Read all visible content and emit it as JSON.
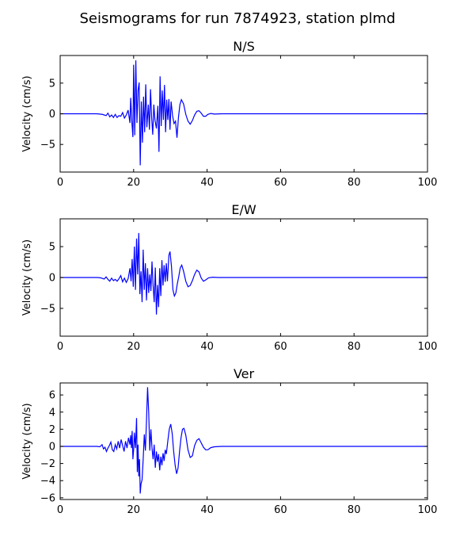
{
  "figure_title": "Seismograms for run 7874923, station plmd",
  "chart_data": [
    {
      "type": "line",
      "title": "N/S",
      "xlabel": "",
      "ylabel": "Velocity (cm/s)",
      "xlim": [
        0,
        100
      ],
      "ylim": [
        -9.5,
        9.5
      ],
      "xticks": [
        0,
        20,
        40,
        60,
        80,
        100
      ],
      "yticks": [
        -5,
        0,
        5
      ],
      "line_color": "#0000ff",
      "grid": false,
      "series": [
        {
          "values": [
            [
              0,
              0
            ],
            [
              10,
              0
            ],
            [
              11.5,
              -0.1
            ],
            [
              12.5,
              -0.3
            ],
            [
              13,
              0.1
            ],
            [
              13.5,
              -0.5
            ],
            [
              14,
              -0.2
            ],
            [
              14.5,
              -0.6
            ],
            [
              15,
              -0.1
            ],
            [
              15.5,
              -0.6
            ],
            [
              16,
              -0.3
            ],
            [
              16.5,
              -0.4
            ],
            [
              17,
              0.2
            ],
            [
              17.5,
              -0.7
            ],
            [
              18,
              -0.2
            ],
            [
              18.5,
              0.6
            ],
            [
              19,
              -1.5
            ],
            [
              19.2,
              2.6
            ],
            [
              19.5,
              -1.2
            ],
            [
              19.8,
              -3.8
            ],
            [
              20,
              8.0
            ],
            [
              20.3,
              -3.5
            ],
            [
              20.6,
              8.7
            ],
            [
              20.9,
              -1.5
            ],
            [
              21.2,
              3.8
            ],
            [
              21.5,
              5.1
            ],
            [
              21.8,
              -8.4
            ],
            [
              22.1,
              2.0
            ],
            [
              22.4,
              -4.7
            ],
            [
              22.7,
              2.8
            ],
            [
              23,
              -3.0
            ],
            [
              23.3,
              4.8
            ],
            [
              23.6,
              -2.2
            ],
            [
              24,
              1.5
            ],
            [
              24.3,
              -2.6
            ],
            [
              24.6,
              4.0
            ],
            [
              24.9,
              -0.6
            ],
            [
              25.2,
              -3.4
            ],
            [
              25.5,
              1.5
            ],
            [
              25.8,
              -1.0
            ],
            [
              26.2,
              -2.4
            ],
            [
              26.6,
              1.3
            ],
            [
              26.9,
              -6.2
            ],
            [
              27.2,
              6.1
            ],
            [
              27.5,
              -2.0
            ],
            [
              27.8,
              3.8
            ],
            [
              28.1,
              -1.0
            ],
            [
              28.4,
              4.7
            ],
            [
              28.7,
              -3.0
            ],
            [
              29,
              2.3
            ],
            [
              29.3,
              -1.0
            ],
            [
              29.6,
              2.4
            ],
            [
              29.9,
              -2.6
            ],
            [
              30.2,
              2.0
            ],
            [
              30.6,
              -0.3
            ],
            [
              31,
              -1.6
            ],
            [
              31.4,
              -1.2
            ],
            [
              31.8,
              -3.9
            ],
            [
              32.2,
              -0.6
            ],
            [
              32.6,
              1.5
            ],
            [
              33,
              2.3
            ],
            [
              33.6,
              1.6
            ],
            [
              34.2,
              -0.1
            ],
            [
              34.8,
              -1.2
            ],
            [
              35.4,
              -1.7
            ],
            [
              36,
              -1.1
            ],
            [
              36.6,
              -0.2
            ],
            [
              37.2,
              0.4
            ],
            [
              37.8,
              0.5
            ],
            [
              38.4,
              0.1
            ],
            [
              39,
              -0.4
            ],
            [
              39.6,
              -0.4
            ],
            [
              40.2,
              -0.1
            ],
            [
              41,
              0.05
            ],
            [
              42,
              -0.05
            ],
            [
              44,
              0
            ],
            [
              100,
              0
            ]
          ]
        }
      ]
    },
    {
      "type": "line",
      "title": "E/W",
      "xlabel": "",
      "ylabel": "Velocity (cm/s)",
      "xlim": [
        0,
        100
      ],
      "ylim": [
        -9.5,
        9.5
      ],
      "xticks": [
        0,
        20,
        40,
        60,
        80,
        100
      ],
      "yticks": [
        -5,
        0,
        5
      ],
      "line_color": "#0000ff",
      "grid": false,
      "series": [
        {
          "values": [
            [
              0,
              0
            ],
            [
              10,
              0
            ],
            [
              11,
              -0.05
            ],
            [
              12,
              -0.25
            ],
            [
              12.5,
              0.1
            ],
            [
              13,
              -0.3
            ],
            [
              13.5,
              -0.6
            ],
            [
              14,
              -0.1
            ],
            [
              14.5,
              -0.5
            ],
            [
              15,
              -0.3
            ],
            [
              15.5,
              -0.6
            ],
            [
              16,
              -0.2
            ],
            [
              16.5,
              0.3
            ],
            [
              17,
              -0.7
            ],
            [
              17.5,
              -0.1
            ],
            [
              18,
              -0.8
            ],
            [
              18.5,
              -0.2
            ],
            [
              19,
              1.5
            ],
            [
              19.3,
              -0.6
            ],
            [
              19.6,
              3.0
            ],
            [
              19.9,
              -1.5
            ],
            [
              20.2,
              5.0
            ],
            [
              20.5,
              -2.0
            ],
            [
              20.8,
              6.3
            ],
            [
              21.1,
              0.5
            ],
            [
              21.4,
              7.2
            ],
            [
              21.7,
              -2.7
            ],
            [
              22,
              1.0
            ],
            [
              22.3,
              -4.0
            ],
            [
              22.6,
              4.5
            ],
            [
              22.9,
              -2.0
            ],
            [
              23.2,
              2.3
            ],
            [
              23.5,
              -3.7
            ],
            [
              23.8,
              1.5
            ],
            [
              24.1,
              -2.5
            ],
            [
              24.4,
              0.5
            ],
            [
              24.7,
              -2.2
            ],
            [
              25,
              2.6
            ],
            [
              25.3,
              -1.3
            ],
            [
              25.6,
              -4.0
            ],
            [
              25.9,
              1.6
            ],
            [
              26.2,
              -6.0
            ],
            [
              26.5,
              -1.2
            ],
            [
              26.8,
              -4.8
            ],
            [
              27.1,
              1.5
            ],
            [
              27.4,
              -3.0
            ],
            [
              27.7,
              2.8
            ],
            [
              28,
              -1.3
            ],
            [
              28.3,
              2.0
            ],
            [
              28.6,
              -0.7
            ],
            [
              28.9,
              2.3
            ],
            [
              29.2,
              -0.6
            ],
            [
              29.6,
              3.6
            ],
            [
              29.9,
              4.2
            ],
            [
              30.3,
              1.8
            ],
            [
              30.7,
              -2.0
            ],
            [
              31.1,
              -3.0
            ],
            [
              31.5,
              -2.5
            ],
            [
              31.9,
              -1.0
            ],
            [
              32.3,
              0.2
            ],
            [
              32.7,
              1.6
            ],
            [
              33.1,
              2.0
            ],
            [
              33.6,
              1.0
            ],
            [
              34.2,
              -0.6
            ],
            [
              34.8,
              -1.5
            ],
            [
              35.4,
              -1.3
            ],
            [
              36,
              -0.5
            ],
            [
              36.6,
              0.5
            ],
            [
              37.2,
              1.2
            ],
            [
              37.8,
              0.9
            ],
            [
              38.4,
              -0.1
            ],
            [
              39,
              -0.6
            ],
            [
              39.6,
              -0.4
            ],
            [
              40.4,
              -0.05
            ],
            [
              41.5,
              0.05
            ],
            [
              43,
              0
            ],
            [
              100,
              0
            ]
          ]
        }
      ]
    },
    {
      "type": "line",
      "title": "Ver",
      "xlabel": "",
      "ylabel": "Velocity (cm/s)",
      "xlim": [
        0,
        100
      ],
      "ylim": [
        -6.2,
        7.4
      ],
      "xticks": [
        0,
        20,
        40,
        60,
        80,
        100
      ],
      "yticks": [
        -6,
        -4,
        -2,
        0,
        2,
        4,
        6
      ],
      "line_color": "#0000ff",
      "grid": false,
      "series": [
        {
          "values": [
            [
              0,
              0
            ],
            [
              10,
              0
            ],
            [
              10.8,
              -0.05
            ],
            [
              11.4,
              0.2
            ],
            [
              11.8,
              -0.3
            ],
            [
              12.2,
              -0.1
            ],
            [
              12.6,
              -0.6
            ],
            [
              13,
              -0.2
            ],
            [
              13.4,
              0.1
            ],
            [
              13.8,
              0.5
            ],
            [
              14.2,
              -0.4
            ],
            [
              14.6,
              -0.6
            ],
            [
              15,
              0.2
            ],
            [
              15.4,
              -0.3
            ],
            [
              15.8,
              0.6
            ],
            [
              16.2,
              -0.2
            ],
            [
              16.6,
              0.8
            ],
            [
              17,
              0.1
            ],
            [
              17.4,
              -0.6
            ],
            [
              17.8,
              0.6
            ],
            [
              18.2,
              -0.2
            ],
            [
              18.6,
              1.0
            ],
            [
              19,
              0.2
            ],
            [
              19.2,
              1.3
            ],
            [
              19.4,
              -0.2
            ],
            [
              19.6,
              1.8
            ],
            [
              19.8,
              -1.5
            ],
            [
              20,
              -0.4
            ],
            [
              20.2,
              1.6
            ],
            [
              20.5,
              -0.2
            ],
            [
              20.8,
              3.3
            ],
            [
              21,
              -3.0
            ],
            [
              21.2,
              0.2
            ],
            [
              21.4,
              -3.5
            ],
            [
              21.6,
              -1.5
            ],
            [
              21.8,
              -5.5
            ],
            [
              22,
              -4.4
            ],
            [
              22.3,
              -3.9
            ],
            [
              22.6,
              -1.5
            ],
            [
              22.9,
              1.4
            ],
            [
              23.2,
              -0.5
            ],
            [
              23.5,
              3.0
            ],
            [
              23.8,
              6.9
            ],
            [
              24.1,
              4.0
            ],
            [
              24.4,
              -0.5
            ],
            [
              24.7,
              2.0
            ],
            [
              25,
              -0.2
            ],
            [
              25.3,
              -1.5
            ],
            [
              25.6,
              0.2
            ],
            [
              25.9,
              -2.5
            ],
            [
              26.2,
              -0.6
            ],
            [
              26.5,
              -1.8
            ],
            [
              26.8,
              -0.9
            ],
            [
              27.1,
              -2.8
            ],
            [
              27.4,
              -1.2
            ],
            [
              27.7,
              -2.2
            ],
            [
              28,
              -0.8
            ],
            [
              28.3,
              -1.7
            ],
            [
              28.6,
              -0.4
            ],
            [
              28.9,
              -0.9
            ],
            [
              29.3,
              0.6
            ],
            [
              29.7,
              2.0
            ],
            [
              30.1,
              2.6
            ],
            [
              30.5,
              1.5
            ],
            [
              30.9,
              -0.6
            ],
            [
              31.3,
              -2.2
            ],
            [
              31.7,
              -3.2
            ],
            [
              32.1,
              -2.5
            ],
            [
              32.5,
              -0.6
            ],
            [
              32.9,
              1.0
            ],
            [
              33.3,
              2.0
            ],
            [
              33.7,
              2.1
            ],
            [
              34.2,
              1.3
            ],
            [
              34.8,
              -0.4
            ],
            [
              35.4,
              -1.3
            ],
            [
              36,
              -1.1
            ],
            [
              36.6,
              0.1
            ],
            [
              37.2,
              0.7
            ],
            [
              37.8,
              0.9
            ],
            [
              38.4,
              0.4
            ],
            [
              39,
              -0.1
            ],
            [
              39.6,
              -0.4
            ],
            [
              40.2,
              -0.4
            ],
            [
              41,
              -0.15
            ],
            [
              42,
              -0.05
            ],
            [
              44,
              0
            ],
            [
              100,
              0
            ]
          ]
        }
      ]
    }
  ]
}
